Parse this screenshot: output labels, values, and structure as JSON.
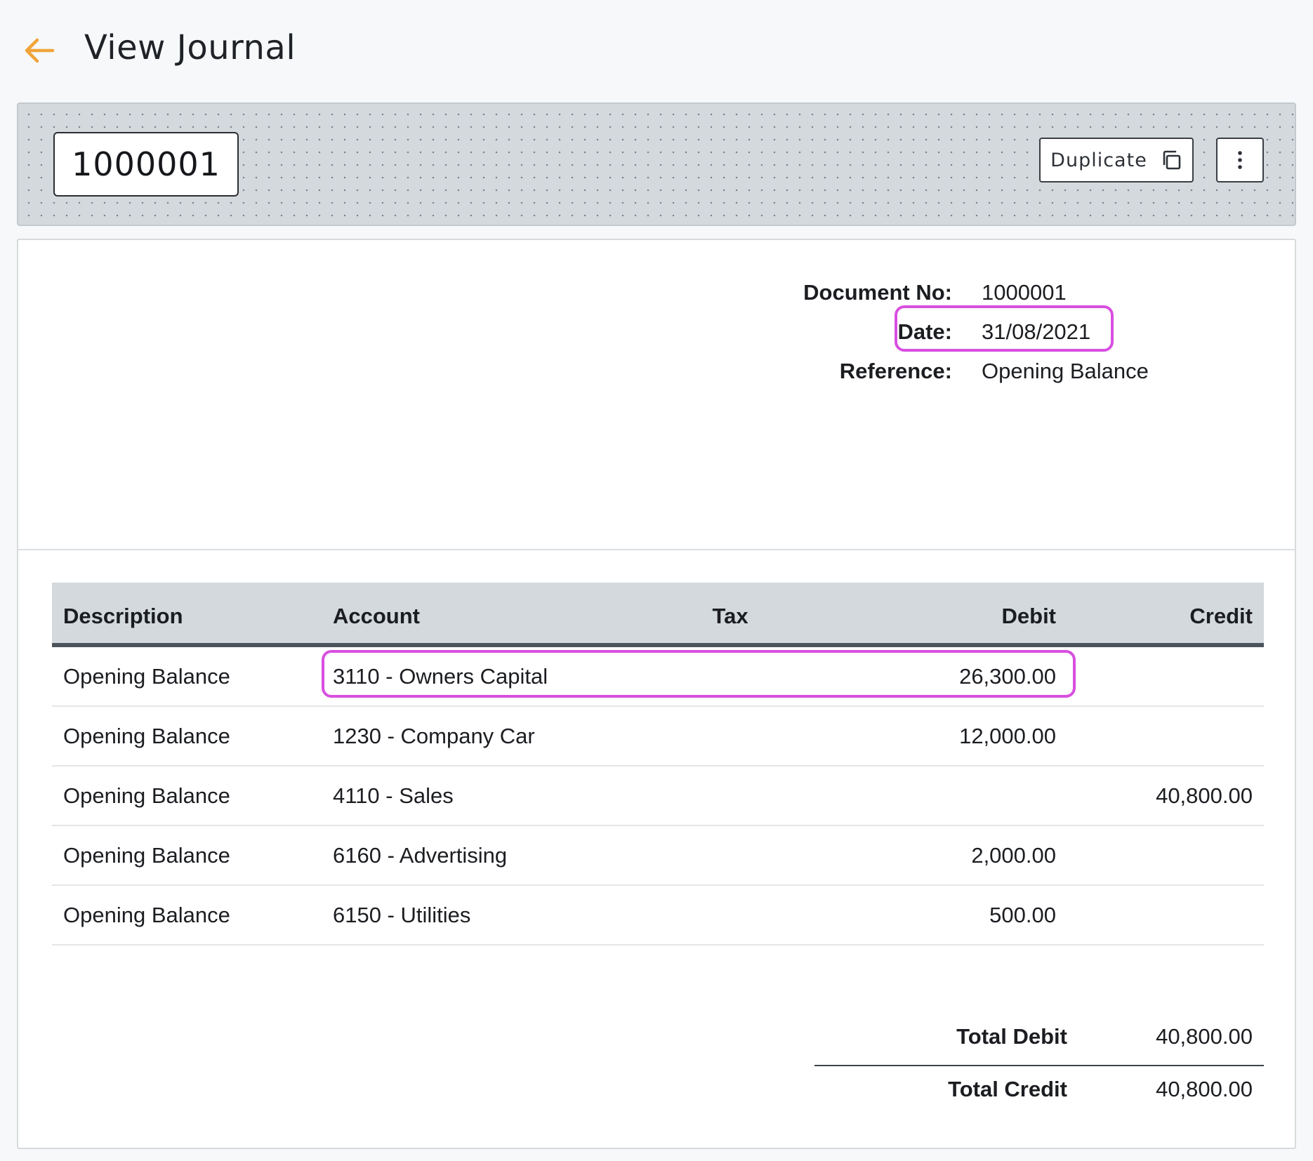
{
  "header": {
    "title": "View Journal",
    "back_icon": "arrow-left-icon",
    "back_icon_color": "#f0a43a"
  },
  "banner": {
    "doc_number": "1000001",
    "duplicate_label": "Duplicate",
    "duplicate_icon": "copy-icon",
    "more_icon": "more-vertical-icon"
  },
  "meta": {
    "doc_no_label": "Document No:",
    "doc_no_value": "1000001",
    "date_label": "Date:",
    "date_value": "31/08/2021",
    "reference_label": "Reference:",
    "reference_value": "Opening Balance"
  },
  "table": {
    "headers": {
      "description": "Description",
      "account": "Account",
      "tax": "Tax",
      "debit": "Debit",
      "credit": "Credit"
    },
    "rows": [
      {
        "description": "Opening Balance",
        "account": "3110 - Owners Capital",
        "tax": "",
        "debit": "26,300.00",
        "credit": ""
      },
      {
        "description": "Opening Balance",
        "account": "1230 - Company Car",
        "tax": "",
        "debit": "12,000.00",
        "credit": ""
      },
      {
        "description": "Opening Balance",
        "account": "4110 - Sales",
        "tax": "",
        "debit": "",
        "credit": "40,800.00"
      },
      {
        "description": "Opening Balance",
        "account": "6160 - Advertising",
        "tax": "",
        "debit": "2,000.00",
        "credit": ""
      },
      {
        "description": "Opening Balance",
        "account": "6150 - Utilities",
        "tax": "",
        "debit": "500.00",
        "credit": ""
      }
    ]
  },
  "totals": {
    "debit_label": "Total Debit",
    "debit_value": "40,800.00",
    "credit_label": "Total Credit",
    "credit_value": "40,800.00"
  },
  "highlight_color": "#d84fe0"
}
